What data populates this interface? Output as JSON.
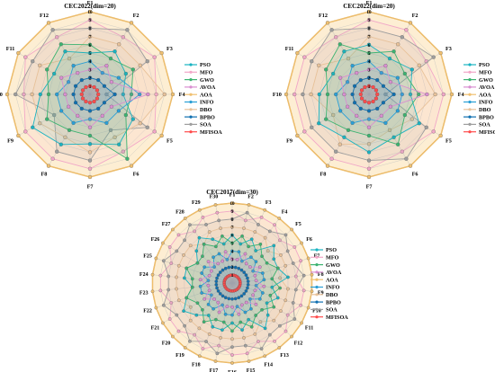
{
  "legend_labels": [
    "PSO",
    "MFO",
    "GWO",
    "AVOA",
    "AOA",
    "INFO",
    "DBO",
    "BPBO",
    "SOA",
    "MFISOA"
  ],
  "colors": [
    "#19b3c2",
    "#f2a7c8",
    "#3cb371",
    "#d98fd1",
    "#f0c070",
    "#2a9fd6",
    "#e8c29a",
    "#0f6fb0",
    "#9e9e9e",
    "#ff4b4b"
  ],
  "chart_data": [
    {
      "type": "radar",
      "title": "CEC2022(dim=20)",
      "axes": [
        "F1",
        "F2",
        "F3",
        "F4",
        "F5",
        "F6",
        "F7",
        "F8",
        "F9",
        "F10",
        "F11",
        "F12"
      ],
      "radial_ticks": [
        1,
        2,
        3,
        4,
        5,
        6,
        7,
        8,
        9,
        10
      ],
      "rlim": [
        0,
        10
      ],
      "legend": "right",
      "series": [
        {
          "name": "PSO",
          "values": [
            5,
            6,
            5,
            4,
            6,
            7,
            6,
            7,
            8,
            6,
            5,
            6
          ]
        },
        {
          "name": "MFO",
          "values": [
            9,
            8,
            9,
            8,
            9,
            8,
            9,
            9,
            9,
            8,
            9,
            8
          ]
        },
        {
          "name": "GWO",
          "values": [
            6,
            5,
            6,
            5,
            5,
            9,
            5,
            5,
            6,
            5,
            6,
            7
          ]
        },
        {
          "name": "AVOA",
          "values": [
            3,
            4,
            3,
            7,
            3,
            3,
            4,
            3,
            3,
            3,
            4,
            3
          ]
        },
        {
          "name": "AOA",
          "values": [
            10,
            10,
            10,
            10,
            10,
            10,
            10,
            10,
            10,
            10,
            10,
            10
          ]
        },
        {
          "name": "INFO",
          "values": [
            4,
            3,
            4,
            6,
            4,
            4,
            3,
            4,
            4,
            4,
            3,
            4
          ]
        },
        {
          "name": "DBO",
          "values": [
            7,
            7,
            7,
            9,
            7,
            6,
            7,
            6,
            7,
            7,
            7,
            5
          ]
        },
        {
          "name": "BPBO",
          "values": [
            2,
            2,
            2,
            3,
            2,
            2,
            2,
            2,
            2,
            2,
            2,
            2
          ]
        },
        {
          "name": "SOA",
          "values": [
            8,
            9,
            8,
            2,
            8,
            5,
            8,
            8,
            5,
            9,
            8,
            9
          ]
        },
        {
          "name": "MFISOA",
          "values": [
            1,
            1,
            1,
            1,
            1,
            1,
            1,
            1,
            1,
            1,
            1,
            1
          ]
        }
      ]
    },
    {
      "type": "radar",
      "title": "CEC2022(dim=20)",
      "axes": [
        "F1",
        "F2",
        "F3",
        "F4",
        "F5",
        "F6",
        "F7",
        "F8",
        "F9",
        "F10",
        "F11",
        "F12"
      ],
      "radial_ticks": [
        1,
        2,
        3,
        4,
        5,
        6,
        7,
        8,
        9,
        10
      ],
      "rlim": [
        0,
        10
      ],
      "legend": "right",
      "series": [
        {
          "name": "PSO",
          "values": [
            6,
            5,
            6,
            5,
            7,
            6,
            7,
            6,
            7,
            6,
            5,
            6
          ]
        },
        {
          "name": "MFO",
          "values": [
            9,
            9,
            8,
            9,
            9,
            8,
            9,
            9,
            9,
            9,
            9,
            8
          ]
        },
        {
          "name": "GWO",
          "values": [
            5,
            6,
            5,
            6,
            5,
            7,
            5,
            5,
            6,
            5,
            6,
            7
          ]
        },
        {
          "name": "AVOA",
          "values": [
            3,
            4,
            3,
            7,
            3,
            3,
            4,
            3,
            3,
            3,
            4,
            3
          ]
        },
        {
          "name": "AOA",
          "values": [
            10,
            10,
            10,
            10,
            10,
            10,
            10,
            10,
            10,
            10,
            10,
            10
          ]
        },
        {
          "name": "INFO",
          "values": [
            4,
            3,
            4,
            4,
            4,
            4,
            3,
            4,
            4,
            4,
            3,
            4
          ]
        },
        {
          "name": "DBO",
          "values": [
            7,
            7,
            7,
            8,
            6,
            5,
            6,
            7,
            5,
            7,
            7,
            5
          ]
        },
        {
          "name": "BPBO",
          "values": [
            2,
            2,
            2,
            3,
            2,
            2,
            2,
            2,
            2,
            2,
            2,
            2
          ]
        },
        {
          "name": "SOA",
          "values": [
            8,
            8,
            9,
            2,
            8,
            9,
            8,
            8,
            8,
            8,
            8,
            9
          ]
        },
        {
          "name": "MFISOA",
          "values": [
            1,
            1,
            1,
            1,
            1,
            1,
            1,
            1,
            1,
            1,
            1,
            1
          ]
        }
      ]
    },
    {
      "type": "radar",
      "title": "CEC2017(dim=30)",
      "axes": [
        "F1",
        "F2",
        "F3",
        "F4",
        "F5",
        "F6",
        "F7",
        "F8",
        "F9",
        "F10",
        "F11",
        "F12",
        "F13",
        "F14",
        "F15",
        "F16",
        "F17",
        "F18",
        "F19",
        "F20",
        "F21",
        "F22",
        "F23",
        "F24",
        "F25",
        "F26",
        "F27",
        "F28",
        "F29",
        "F30"
      ],
      "radial_ticks": [
        1,
        2,
        3,
        4,
        5,
        6,
        7,
        8,
        9,
        10
      ],
      "rlim": [
        0,
        10
      ],
      "legend": "right",
      "series": [
        {
          "name": "PSO",
          "values": [
            6,
            5,
            6,
            5,
            7,
            6,
            6,
            7,
            5,
            6,
            5,
            6,
            7,
            5,
            6,
            5,
            6,
            6,
            5,
            6,
            7,
            6,
            5,
            6,
            6,
            5,
            6,
            7,
            6,
            5
          ]
        },
        {
          "name": "MFO",
          "values": [
            9,
            8,
            9,
            9,
            8,
            9,
            9,
            8,
            9,
            9,
            8,
            9,
            9,
            8,
            9,
            9,
            8,
            9,
            8,
            9,
            9,
            8,
            9,
            9,
            8,
            9,
            9,
            8,
            9,
            9
          ]
        },
        {
          "name": "GWO",
          "values": [
            5,
            6,
            5,
            6,
            5,
            5,
            6,
            5,
            6,
            5,
            6,
            5,
            5,
            6,
            5,
            6,
            5,
            5,
            6,
            5,
            5,
            6,
            5,
            5,
            6,
            5,
            5,
            6,
            5,
            6
          ]
        },
        {
          "name": "AVOA",
          "values": [
            3,
            3,
            4,
            3,
            3,
            4,
            3,
            3,
            4,
            3,
            3,
            4,
            3,
            3,
            4,
            3,
            3,
            4,
            3,
            3,
            4,
            3,
            3,
            4,
            3,
            3,
            4,
            3,
            3,
            4
          ]
        },
        {
          "name": "AOA",
          "values": [
            10,
            10,
            10,
            10,
            10,
            10,
            10,
            10,
            10,
            10,
            10,
            10,
            10,
            10,
            10,
            10,
            10,
            10,
            10,
            10,
            10,
            10,
            10,
            10,
            10,
            10,
            10,
            10,
            10,
            10
          ]
        },
        {
          "name": "INFO",
          "values": [
            4,
            4,
            3,
            4,
            4,
            3,
            4,
            4,
            3,
            4,
            4,
            3,
            4,
            4,
            3,
            4,
            4,
            3,
            4,
            4,
            3,
            4,
            4,
            3,
            4,
            4,
            3,
            4,
            4,
            3
          ]
        },
        {
          "name": "DBO",
          "values": [
            7,
            7,
            7,
            7,
            6,
            7,
            7,
            6,
            7,
            7,
            7,
            7,
            6,
            7,
            7,
            7,
            7,
            7,
            7,
            7,
            6,
            7,
            7,
            7,
            7,
            7,
            7,
            6,
            7,
            7
          ]
        },
        {
          "name": "BPBO",
          "values": [
            2,
            2,
            2,
            2,
            2,
            2,
            2,
            2,
            2,
            2,
            2,
            2,
            2,
            2,
            2,
            2,
            2,
            2,
            2,
            2,
            2,
            2,
            2,
            2,
            2,
            2,
            2,
            2,
            2,
            2
          ]
        },
        {
          "name": "SOA",
          "values": [
            8,
            9,
            8,
            8,
            9,
            8,
            8,
            9,
            8,
            8,
            9,
            8,
            8,
            9,
            8,
            8,
            9,
            8,
            9,
            8,
            8,
            9,
            8,
            8,
            9,
            8,
            8,
            9,
            8,
            8
          ]
        },
        {
          "name": "MFISOA",
          "values": [
            1,
            1,
            1,
            1,
            1,
            1,
            1,
            1,
            1,
            1,
            1,
            1,
            1,
            1,
            1,
            1,
            1,
            1,
            1,
            1,
            1,
            1,
            1,
            1,
            1,
            1,
            1,
            1,
            1,
            1
          ]
        }
      ]
    }
  ]
}
